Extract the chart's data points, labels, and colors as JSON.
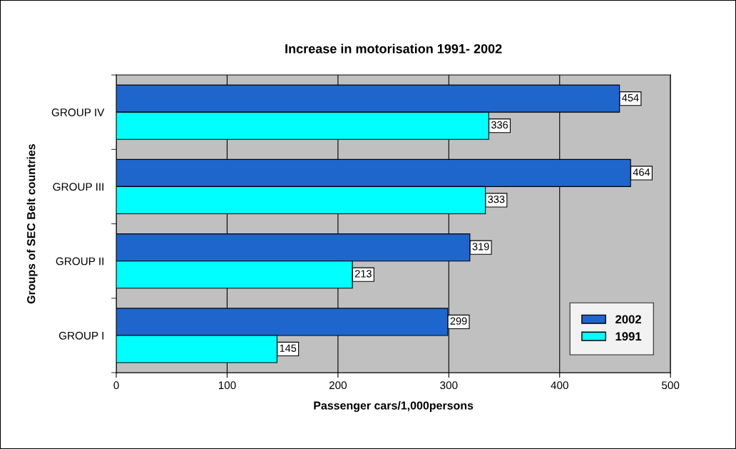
{
  "chart_data": {
    "type": "bar",
    "orientation": "horizontal",
    "title": "Increase in motorisation 1991- 2002",
    "xlabel": "Passenger cars/1,000persons",
    "ylabel": "Groups of SEC Belt countries",
    "categories": [
      "GROUP IV",
      "GROUP III",
      "GROUP II",
      "GROUP I"
    ],
    "series": [
      {
        "name": "2002",
        "color": "#1f66cc",
        "values": [
          454,
          464,
          319,
          299
        ]
      },
      {
        "name": "1991",
        "color": "#00ffff",
        "values": [
          336,
          333,
          213,
          145
        ]
      }
    ],
    "xlim": [
      0,
      500
    ],
    "xticks": [
      0,
      100,
      200,
      300,
      400,
      500
    ],
    "grid": "x",
    "legend": "bottom right",
    "data_labels": true
  }
}
